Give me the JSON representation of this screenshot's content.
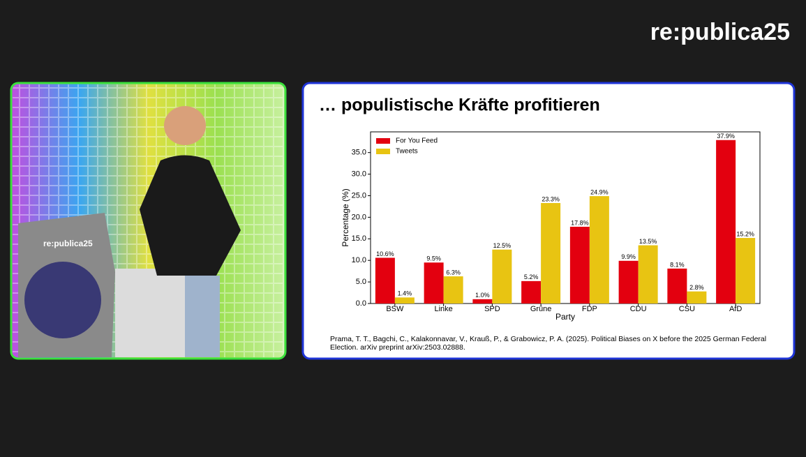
{
  "logo": "re:publica25",
  "podium_logo": "re:publica25",
  "chart_data": {
    "type": "bar",
    "title": "… populistische Kräfte profitieren",
    "xlabel": "Party",
    "ylabel": "Percentage (%)",
    "source": "Prama, T. T., Bagchi, C., Kalakonnavar, V., Krauß, P., & Grabowicz, P. A. (2025). Political Biases on X before the 2025 German Federal Election. arXiv preprint arXiv:2503.02888.",
    "categories": [
      "BSW",
      "Linke",
      "SPD",
      "Grüne",
      "FDP",
      "CDU",
      "CSU",
      "AfD"
    ],
    "series": [
      {
        "name": "For You Feed",
        "color": "#e3000f",
        "values": [
          10.6,
          9.5,
          1.0,
          5.2,
          17.8,
          9.9,
          8.1,
          37.9
        ],
        "value_labels": [
          "10.6%",
          "9.5%",
          "1.0%",
          "5.2%",
          "17.8%",
          "9.9%",
          "8.1%",
          "37.9%"
        ]
      },
      {
        "name": "Tweets",
        "color": "#e8c412",
        "values": [
          1.4,
          6.3,
          12.5,
          23.3,
          24.9,
          13.5,
          2.8,
          15.2
        ],
        "value_labels": [
          "1.4%",
          "6.3%",
          "12.5%",
          "23.3%",
          "24.9%",
          "13.5%",
          "2.8%",
          "15.2%"
        ]
      }
    ],
    "ylim": [
      0,
      39.8
    ],
    "yticks": [
      {
        "value": 0,
        "label": "0.0"
      },
      {
        "value": 5,
        "label": "5.0"
      },
      {
        "value": 10,
        "label": "10.0"
      },
      {
        "value": 15,
        "label": "15.0"
      },
      {
        "value": 20,
        "label": "20.0"
      },
      {
        "value": 25,
        "label": "25.0"
      },
      {
        "value": 30,
        "label": "30.0"
      },
      {
        "value": 35,
        "label": "35.0"
      }
    ],
    "legend": "upper left",
    "grid": false
  }
}
